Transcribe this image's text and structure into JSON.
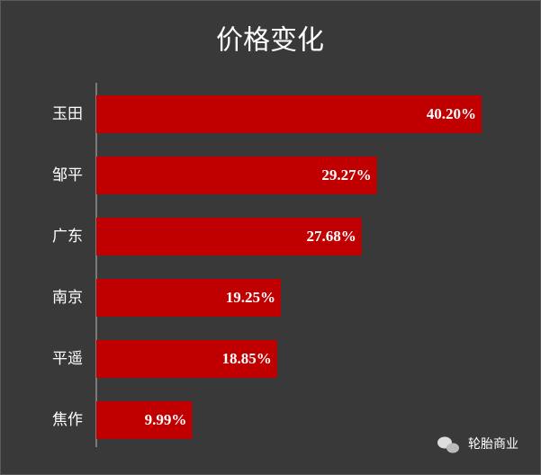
{
  "chart_data": {
    "type": "bar",
    "orientation": "horizontal",
    "title": "价格变化",
    "categories": [
      "玉田",
      "邹平",
      "广东",
      "南京",
      "平遥",
      "焦作"
    ],
    "values": [
      40.2,
      29.27,
      27.68,
      19.25,
      18.85,
      9.99
    ],
    "value_labels": [
      "40.20%",
      "29.27%",
      "27.68%",
      "19.25%",
      "18.85%",
      "9.99%"
    ],
    "color": "#c00000",
    "watermark": "轮胎商业"
  }
}
